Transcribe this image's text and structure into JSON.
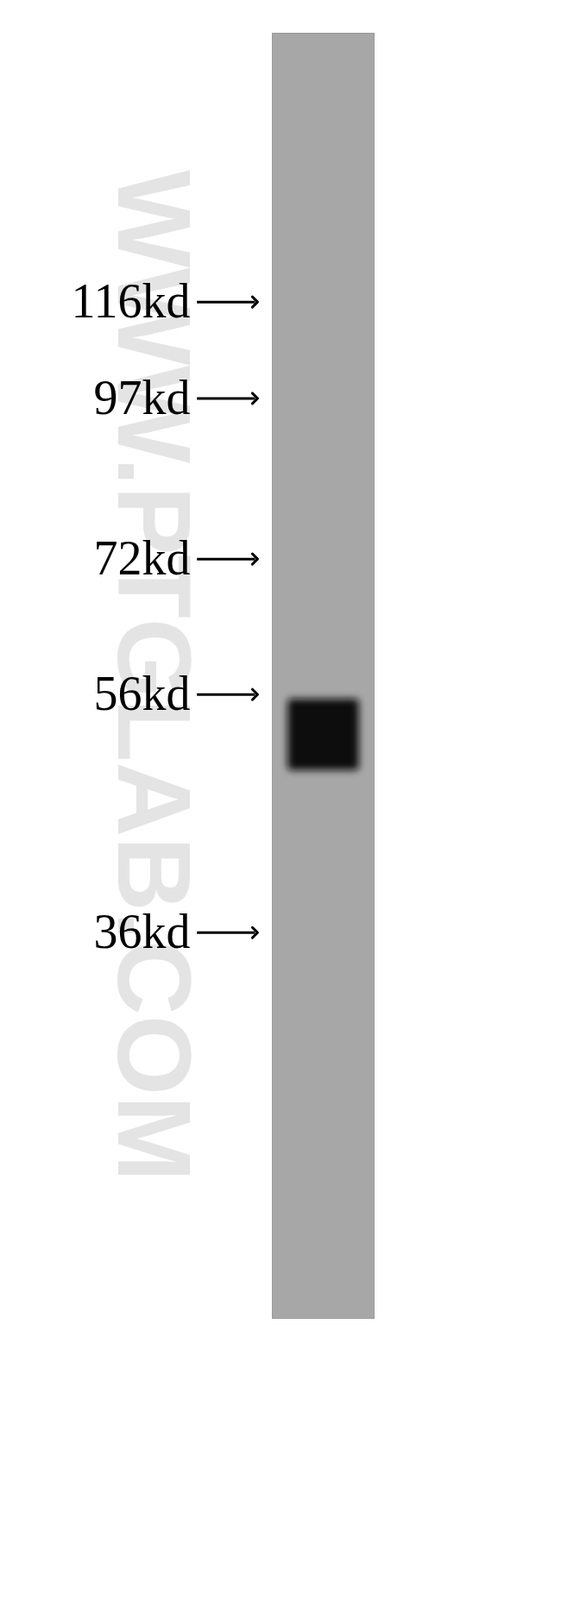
{
  "chart_data": {
    "type": "western_blot",
    "watermark": "WWW.PTGLAB.COM",
    "log": "y",
    "ylim": [
      17.6,
      191
    ],
    "yticks": [
      {
        "value": 116,
        "label": "116kd"
      },
      {
        "value": 97,
        "label": "97kd"
      },
      {
        "value": 72,
        "label": "72kd"
      },
      {
        "value": 56,
        "label": "56kd"
      },
      {
        "value": 36,
        "label": "36kd"
      }
    ],
    "bands": [
      52
    ],
    "color": "#0d0d0d",
    "tick_labels": "y",
    "grid": false
  }
}
